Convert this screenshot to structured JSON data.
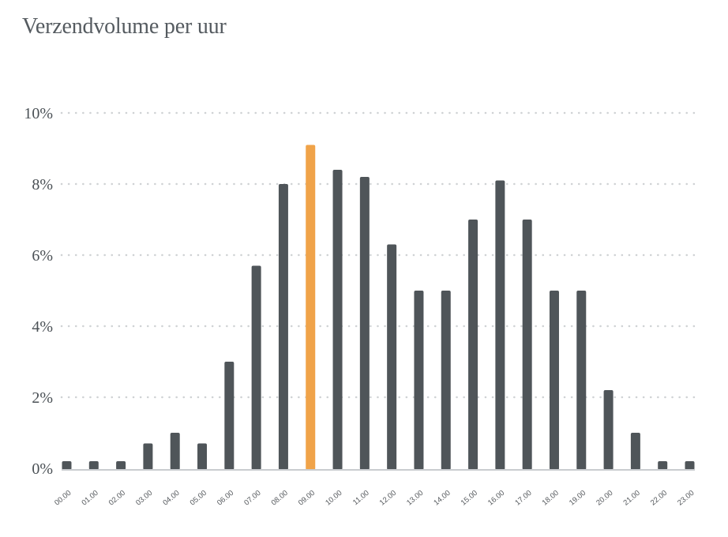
{
  "chart_data": {
    "type": "bar",
    "title": "Verzendvolume per uur",
    "xlabel": "",
    "ylabel": "",
    "ylim": [
      0,
      10
    ],
    "yticks": [
      "0%",
      "2%",
      "4%",
      "6%",
      "8%",
      "10%"
    ],
    "grid": true,
    "categories": [
      "00.00",
      "01.00",
      "02.00",
      "03.00",
      "04.00",
      "05.00",
      "06.00",
      "07.00",
      "08.00",
      "09.00",
      "10.00",
      "11.00",
      "12.00",
      "13.00",
      "14.00",
      "15.00",
      "16.00",
      "17.00",
      "18.00",
      "19.00",
      "20.00",
      "21.00",
      "22.00",
      "23.00"
    ],
    "values": [
      0.2,
      0.2,
      0.2,
      0.7,
      1.0,
      0.7,
      3.0,
      5.7,
      8.0,
      9.1,
      8.4,
      8.2,
      6.3,
      5.0,
      5.0,
      7.0,
      8.1,
      7.0,
      5.0,
      5.0,
      2.2,
      1.0,
      0.2,
      0.2
    ],
    "highlight_index": 9,
    "colors": {
      "bar": "#4f5559",
      "highlight": "#f0a349",
      "grid": "#cfd2d4",
      "axis": "#c9cccf"
    }
  }
}
